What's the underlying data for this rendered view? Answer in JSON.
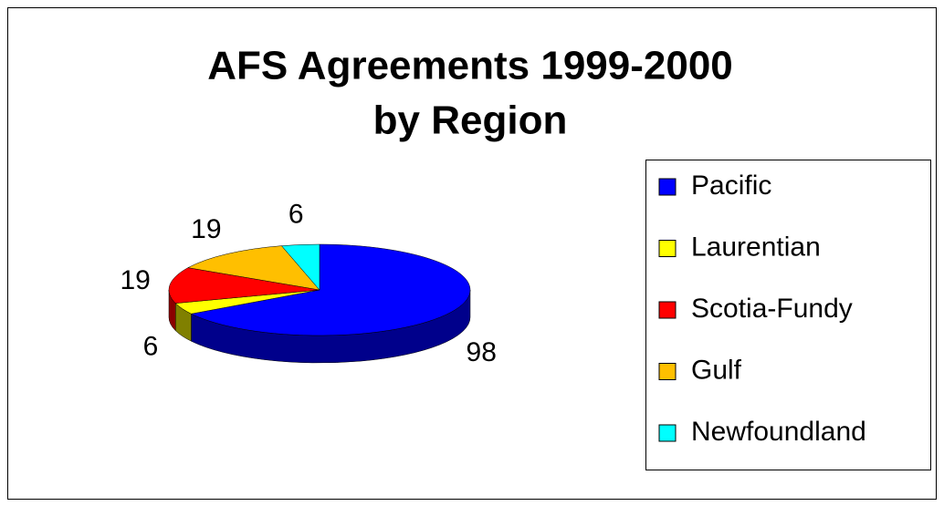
{
  "chart_data": {
    "type": "pie3d",
    "title": [
      "AFS Agreements 1999-2000",
      "by Region"
    ],
    "categories": [
      "Pacific",
      "Laurentian",
      "Scotia-Fundy",
      "Gulf",
      "Newfoundland"
    ],
    "values": [
      98,
      6,
      19,
      19,
      6
    ],
    "colors": [
      "#0000ff",
      "#ffff00",
      "#ff0000",
      "#ffbf00",
      "#00ffff"
    ],
    "side_colors": [
      "#00008b",
      "#808000",
      "#8b0000",
      "#806000",
      "#008080"
    ],
    "legend": "right"
  }
}
